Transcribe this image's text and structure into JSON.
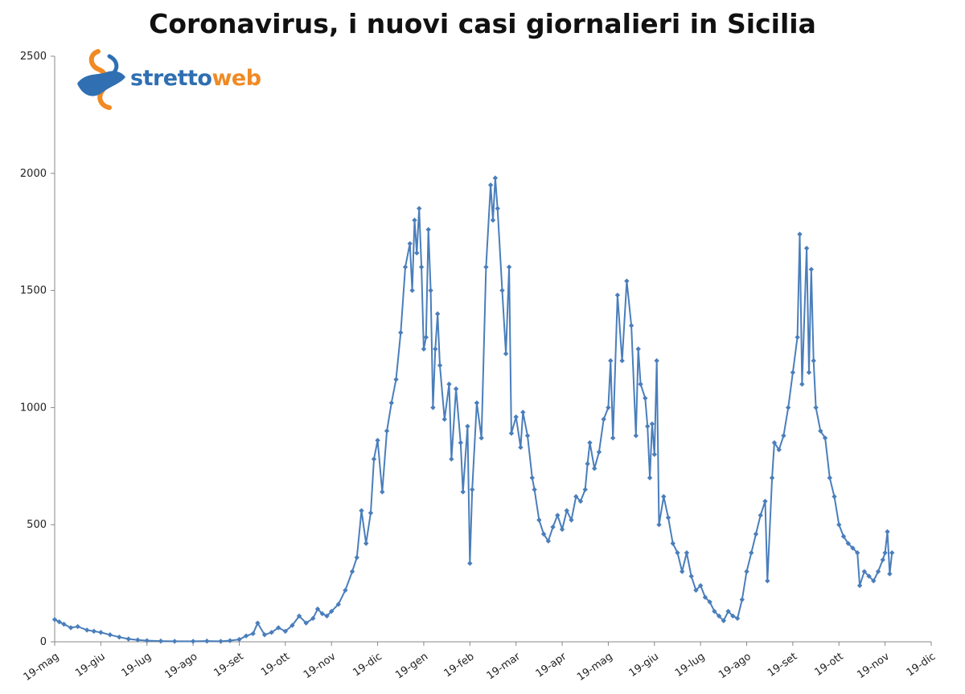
{
  "logo": {
    "part1": "stretto",
    "part2": "web",
    "color1": "#2f6fb2",
    "color2": "#f08a24"
  },
  "chart_data": {
    "type": "line",
    "title": "Coronavirus, i nuovi casi giornalieri in Sicilia",
    "xlabel": "",
    "ylabel": "",
    "ylim": [
      0,
      2500
    ],
    "yticks": [
      0,
      500,
      1000,
      1500,
      2000,
      2500
    ],
    "xticks": [
      "19-mag",
      "19-giu",
      "19-lug",
      "19-ago",
      "19-set",
      "19-ott",
      "19-nov",
      "19-dic",
      "19-gen",
      "19-feb",
      "19-mar",
      "19-apr",
      "19-mag",
      "19-giu",
      "19-lug",
      "19-ago",
      "19-set",
      "19-ott",
      "19-nov",
      "19-dic"
    ],
    "grid": false,
    "legend": "none",
    "series_color": "#4a7ebb",
    "series": [
      {
        "x_unit": "month index from 19-mag (2020)",
        "points": [
          [
            0,
            95
          ],
          [
            0.1,
            85
          ],
          [
            0.2,
            75
          ],
          [
            0.35,
            60
          ],
          [
            0.5,
            65
          ],
          [
            0.7,
            50
          ],
          [
            0.85,
            45
          ],
          [
            1.0,
            40
          ],
          [
            1.2,
            30
          ],
          [
            1.4,
            20
          ],
          [
            1.6,
            12
          ],
          [
            1.8,
            8
          ],
          [
            2.0,
            5
          ],
          [
            2.3,
            3
          ],
          [
            2.6,
            2
          ],
          [
            3.0,
            2
          ],
          [
            3.3,
            3
          ],
          [
            3.6,
            2
          ],
          [
            3.8,
            5
          ],
          [
            4.0,
            10
          ],
          [
            4.15,
            25
          ],
          [
            4.3,
            35
          ],
          [
            4.4,
            80
          ],
          [
            4.55,
            30
          ],
          [
            4.7,
            40
          ],
          [
            4.85,
            60
          ],
          [
            5.0,
            45
          ],
          [
            5.15,
            70
          ],
          [
            5.3,
            110
          ],
          [
            5.45,
            80
          ],
          [
            5.6,
            100
          ],
          [
            5.7,
            140
          ],
          [
            5.8,
            120
          ],
          [
            5.9,
            110
          ],
          [
            6.0,
            130
          ],
          [
            6.15,
            160
          ],
          [
            6.3,
            220
          ],
          [
            6.45,
            300
          ],
          [
            6.55,
            360
          ],
          [
            6.65,
            560
          ],
          [
            6.75,
            420
          ],
          [
            6.85,
            550
          ],
          [
            6.92,
            780
          ],
          [
            7.0,
            860
          ],
          [
            7.1,
            640
          ],
          [
            7.2,
            900
          ],
          [
            7.3,
            1020
          ],
          [
            7.4,
            1120
          ],
          [
            7.5,
            1320
          ],
          [
            7.6,
            1600
          ],
          [
            7.7,
            1700
          ],
          [
            7.75,
            1500
          ],
          [
            7.8,
            1800
          ],
          [
            7.85,
            1660
          ],
          [
            7.9,
            1850
          ],
          [
            7.95,
            1600
          ],
          [
            8.0,
            1250
          ],
          [
            8.05,
            1300
          ],
          [
            8.1,
            1760
          ],
          [
            8.15,
            1500
          ],
          [
            8.2,
            1000
          ],
          [
            8.25,
            1250
          ],
          [
            8.3,
            1400
          ],
          [
            8.35,
            1180
          ],
          [
            8.45,
            950
          ],
          [
            8.55,
            1100
          ],
          [
            8.6,
            780
          ],
          [
            8.7,
            1080
          ],
          [
            8.8,
            850
          ],
          [
            8.85,
            640
          ],
          [
            8.95,
            920
          ],
          [
            9.0,
            335
          ],
          [
            9.05,
            650
          ],
          [
            9.15,
            1020
          ],
          [
            9.25,
            870
          ],
          [
            9.35,
            1600
          ],
          [
            9.45,
            1950
          ],
          [
            9.5,
            1800
          ],
          [
            9.55,
            1980
          ],
          [
            9.6,
            1850
          ],
          [
            9.7,
            1500
          ],
          [
            9.78,
            1230
          ],
          [
            9.85,
            1600
          ],
          [
            9.9,
            890
          ],
          [
            10.0,
            960
          ],
          [
            10.1,
            830
          ],
          [
            10.15,
            980
          ],
          [
            10.25,
            880
          ],
          [
            10.35,
            700
          ],
          [
            10.4,
            650
          ],
          [
            10.5,
            520
          ],
          [
            10.6,
            460
          ],
          [
            10.7,
            430
          ],
          [
            10.8,
            490
          ],
          [
            10.9,
            540
          ],
          [
            11.0,
            480
          ],
          [
            11.1,
            560
          ],
          [
            11.2,
            520
          ],
          [
            11.3,
            620
          ],
          [
            11.4,
            600
          ],
          [
            11.5,
            650
          ],
          [
            11.55,
            760
          ],
          [
            11.6,
            850
          ],
          [
            11.7,
            740
          ],
          [
            11.8,
            810
          ],
          [
            11.9,
            950
          ],
          [
            12.0,
            1000
          ],
          [
            12.05,
            1200
          ],
          [
            12.1,
            870
          ],
          [
            12.2,
            1480
          ],
          [
            12.3,
            1200
          ],
          [
            12.4,
            1540
          ],
          [
            12.5,
            1350
          ],
          [
            12.6,
            880
          ],
          [
            12.65,
            1250
          ],
          [
            12.7,
            1100
          ],
          [
            12.8,
            1040
          ],
          [
            12.85,
            920
          ],
          [
            12.9,
            700
          ],
          [
            12.95,
            930
          ],
          [
            13.0,
            800
          ],
          [
            13.05,
            1200
          ],
          [
            13.1,
            500
          ],
          [
            13.2,
            620
          ],
          [
            13.3,
            530
          ],
          [
            13.4,
            420
          ],
          [
            13.5,
            380
          ],
          [
            13.6,
            300
          ],
          [
            13.7,
            380
          ],
          [
            13.8,
            280
          ],
          [
            13.9,
            220
          ],
          [
            14.0,
            240
          ],
          [
            14.1,
            190
          ],
          [
            14.2,
            170
          ],
          [
            14.3,
            130
          ],
          [
            14.4,
            110
          ],
          [
            14.5,
            90
          ],
          [
            14.6,
            130
          ],
          [
            14.7,
            110
          ],
          [
            14.8,
            100
          ],
          [
            14.9,
            180
          ],
          [
            15.0,
            300
          ],
          [
            15.1,
            380
          ],
          [
            15.2,
            460
          ],
          [
            15.3,
            540
          ],
          [
            15.4,
            600
          ],
          [
            15.45,
            260
          ],
          [
            15.55,
            700
          ],
          [
            15.6,
            850
          ],
          [
            15.7,
            820
          ],
          [
            15.8,
            880
          ],
          [
            15.9,
            1000
          ],
          [
            16.0,
            1150
          ],
          [
            16.1,
            1300
          ],
          [
            16.15,
            1740
          ],
          [
            16.2,
            1100
          ],
          [
            16.3,
            1680
          ],
          [
            16.35,
            1150
          ],
          [
            16.4,
            1590
          ],
          [
            16.45,
            1200
          ],
          [
            16.5,
            1000
          ],
          [
            16.6,
            900
          ],
          [
            16.7,
            870
          ],
          [
            16.8,
            700
          ],
          [
            16.9,
            620
          ],
          [
            17.0,
            500
          ],
          [
            17.1,
            450
          ],
          [
            17.2,
            420
          ],
          [
            17.3,
            400
          ],
          [
            17.4,
            380
          ],
          [
            17.45,
            240
          ],
          [
            17.55,
            300
          ],
          [
            17.65,
            280
          ],
          [
            17.75,
            260
          ],
          [
            17.85,
            300
          ],
          [
            17.95,
            350
          ],
          [
            18.0,
            380
          ],
          [
            18.05,
            470
          ],
          [
            18.1,
            290
          ],
          [
            18.15,
            380
          ]
        ]
      }
    ]
  }
}
